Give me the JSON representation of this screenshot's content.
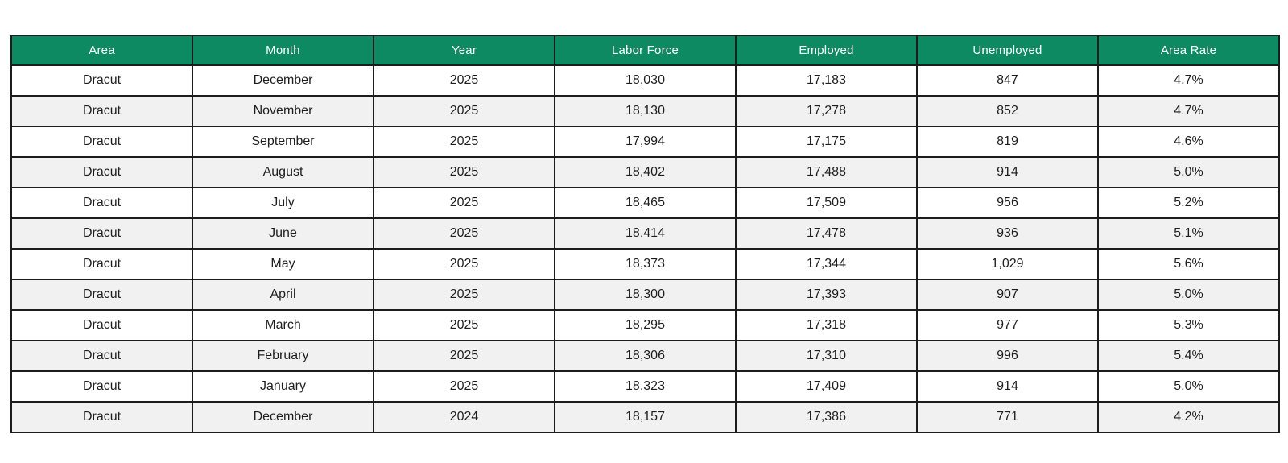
{
  "colors": {
    "header_bg": "#0e8a62",
    "header_text": "#ffffff",
    "row_bg": "#ffffff",
    "row_alt_bg": "#f1f1f1",
    "border": "#1c1c1c",
    "cell_text": "#1e1e1e"
  },
  "chart_data": {
    "type": "table",
    "title": "",
    "columns": [
      "Area",
      "Month",
      "Year",
      "Labor Force",
      "Employed",
      "Unemployed",
      "Area Rate"
    ],
    "rows": [
      [
        "Dracut",
        "December",
        "2025",
        "18,030",
        "17,183",
        "847",
        "4.7%"
      ],
      [
        "Dracut",
        "November",
        "2025",
        "18,130",
        "17,278",
        "852",
        "4.7%"
      ],
      [
        "Dracut",
        "September",
        "2025",
        "17,994",
        "17,175",
        "819",
        "4.6%"
      ],
      [
        "Dracut",
        "August",
        "2025",
        "18,402",
        "17,488",
        "914",
        "5.0%"
      ],
      [
        "Dracut",
        "July",
        "2025",
        "18,465",
        "17,509",
        "956",
        "5.2%"
      ],
      [
        "Dracut",
        "June",
        "2025",
        "18,414",
        "17,478",
        "936",
        "5.1%"
      ],
      [
        "Dracut",
        "May",
        "2025",
        "18,373",
        "17,344",
        "1,029",
        "5.6%"
      ],
      [
        "Dracut",
        "April",
        "2025",
        "18,300",
        "17,393",
        "907",
        "5.0%"
      ],
      [
        "Dracut",
        "March",
        "2025",
        "18,295",
        "17,318",
        "977",
        "5.3%"
      ],
      [
        "Dracut",
        "February",
        "2025",
        "18,306",
        "17,310",
        "996",
        "5.4%"
      ],
      [
        "Dracut",
        "January",
        "2025",
        "18,323",
        "17,409",
        "914",
        "5.0%"
      ],
      [
        "Dracut",
        "December",
        "2024",
        "18,157",
        "17,386",
        "771",
        "4.2%"
      ]
    ]
  }
}
